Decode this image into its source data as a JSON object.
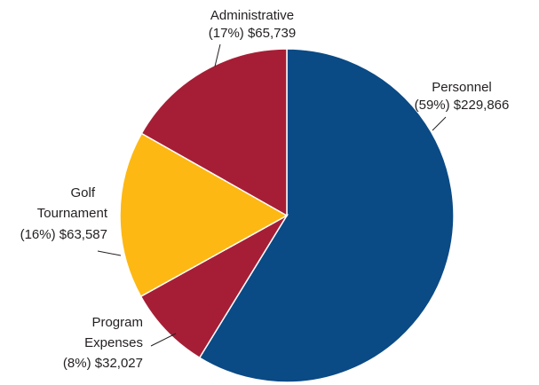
{
  "chart_data": {
    "type": "pie",
    "slices": [
      {
        "name": "Personnel",
        "percent_label": "(59%)",
        "value": 229866,
        "value_label": "$229,866",
        "color": "#0a4a85"
      },
      {
        "name": "Program Expenses",
        "name_lines": [
          "Program",
          "Expenses"
        ],
        "percent_label": "(8%)",
        "value": 32027,
        "value_label": "$32,027",
        "color": "#a61e35"
      },
      {
        "name": "Golf Tournament",
        "name_lines": [
          "Golf",
          "Tournament"
        ],
        "percent_label": "(16%)",
        "value": 63587,
        "value_label": "$63,587",
        "color": "#fdb813"
      },
      {
        "name": "Administrative",
        "percent_label": "(17%)",
        "value": 65739,
        "value_label": "$65,739",
        "color": "#a61e35"
      }
    ],
    "start": "12 o'clock",
    "direction": "clockwise",
    "legend": "none"
  }
}
